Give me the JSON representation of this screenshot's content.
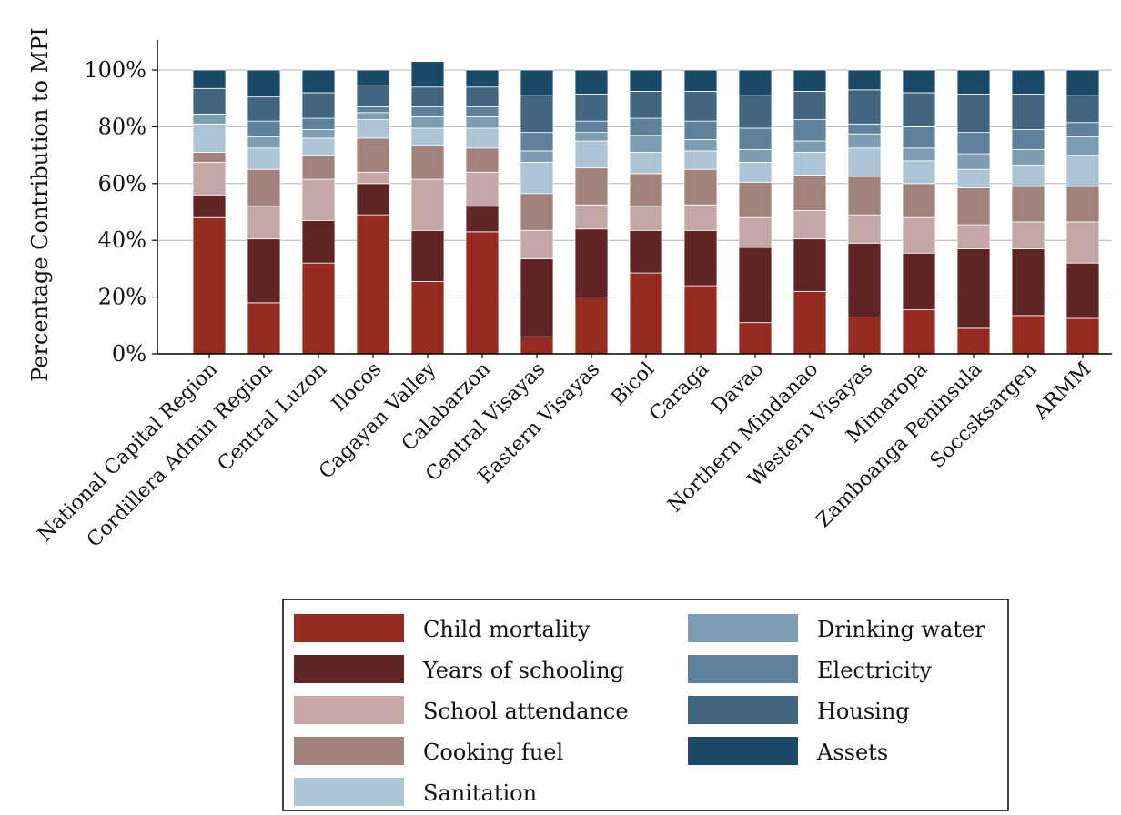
{
  "chart_data": {
    "type": "bar",
    "stacked": true,
    "ylabel": "Percentage Contribution to MPI",
    "xlabel": "",
    "ylim": [
      0,
      100
    ],
    "yticks": [
      "0%",
      "20%",
      "40%",
      "60%",
      "80%",
      "100%"
    ],
    "grid": "horizontal",
    "legend_position": "bottom",
    "categories": [
      "National Capital Region",
      "Cordillera Admin Region",
      "Central Luzon",
      "Ilocos",
      "Cagayan Valley",
      "Calabarzon",
      "Central Visayas",
      "Eastern Visayas",
      "Bicol",
      "Caraga",
      "Davao",
      "Northern Mindanao",
      "Western Visayas",
      "Mimaropa",
      "Zamboanga Peninsula",
      "Soccsksargen",
      "ARMM"
    ],
    "series": [
      {
        "name": "Child mortality",
        "color": "#952b21",
        "values": [
          48,
          18,
          32,
          49,
          25.5,
          43,
          6,
          20,
          28.5,
          24,
          11,
          22,
          13,
          15.5,
          9,
          13.5,
          12.5
        ]
      },
      {
        "name": "Years of schooling",
        "color": "#5f2424",
        "values": [
          8,
          22.5,
          15,
          11,
          18,
          9,
          27.5,
          24,
          15,
          19.5,
          26.5,
          18.5,
          26,
          20,
          28,
          23.5,
          19.5
        ]
      },
      {
        "name": "School attendance",
        "color": "#c4a6a6",
        "values": [
          11.5,
          11.5,
          14.5,
          4,
          18,
          12,
          10,
          8.5,
          8.5,
          9,
          10.5,
          10,
          10,
          12.5,
          8.5,
          9.5,
          14.5
        ]
      },
      {
        "name": "Cooking fuel",
        "color": "#a2837c",
        "values": [
          3.5,
          13,
          8.5,
          12,
          12,
          8.5,
          13,
          13,
          11.5,
          12.5,
          12.5,
          12.5,
          13.5,
          12,
          13,
          12.5,
          12.5
        ]
      },
      {
        "name": "Sanitation",
        "color": "#adc4d4",
        "values": [
          10,
          7.5,
          6,
          6.5,
          6,
          7,
          11,
          9.5,
          7.5,
          6.5,
          7,
          8,
          10,
          8,
          6.5,
          7.5,
          11
        ]
      },
      {
        "name": "Drinking water",
        "color": "#7d9db3",
        "values": [
          3.5,
          4,
          3,
          2.5,
          4,
          4,
          4,
          3,
          6,
          4,
          4.5,
          4,
          5,
          4.5,
          5.5,
          5.5,
          6.5
        ]
      },
      {
        "name": "Electricity",
        "color": "#5f819b",
        "values": [
          0,
          5.5,
          4,
          2,
          3.5,
          3.5,
          6.5,
          4,
          6,
          6.5,
          7.5,
          7.5,
          3.5,
          7.5,
          7.5,
          7,
          5
        ]
      },
      {
        "name": "Housing",
        "color": "#426580",
        "values": [
          9,
          8.5,
          9,
          7.5,
          7,
          7,
          13,
          9.5,
          9.5,
          10.5,
          11.5,
          10,
          12,
          12,
          13.5,
          12.5,
          9.5
        ]
      },
      {
        "name": "Assets",
        "color": "#1a4a68",
        "values": [
          6.5,
          9.5,
          8,
          5.5,
          9,
          6,
          9,
          8.5,
          7.5,
          7.5,
          9,
          7.5,
          7,
          8,
          8.5,
          8.5,
          9
        ]
      }
    ]
  }
}
